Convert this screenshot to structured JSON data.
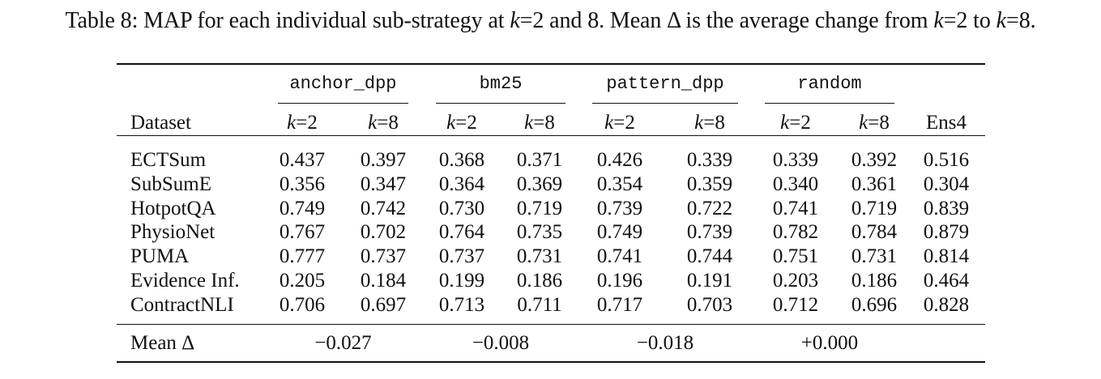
{
  "caption": {
    "prefix": "Table 8: MAP for each individual sub-strategy at ",
    "k1": "k",
    "mid1": "=2 and 8. Mean Δ is the average change from ",
    "k2": "k",
    "mid2": "=2 to ",
    "k3": "k",
    "suffix": "=8."
  },
  "header": {
    "dataset_label": "Dataset",
    "groups": [
      "anchor_dpp",
      "bm25",
      "pattern_dpp",
      "random"
    ],
    "k_var": "k",
    "k_low": "=2",
    "k_high": "=8",
    "ens_label": "Ens4"
  },
  "rows": [
    {
      "dataset": "ECTSum",
      "values": [
        "0.437",
        "0.397",
        "0.368",
        "0.371",
        "0.426",
        "0.339",
        "0.339",
        "0.392"
      ],
      "ens4": "0.516"
    },
    {
      "dataset": "SubSumE",
      "values": [
        "0.356",
        "0.347",
        "0.364",
        "0.369",
        "0.354",
        "0.359",
        "0.340",
        "0.361"
      ],
      "ens4": "0.304"
    },
    {
      "dataset": "HotpotQA",
      "values": [
        "0.749",
        "0.742",
        "0.730",
        "0.719",
        "0.739",
        "0.722",
        "0.741",
        "0.719"
      ],
      "ens4": "0.839"
    },
    {
      "dataset": "PhysioNet",
      "values": [
        "0.767",
        "0.702",
        "0.764",
        "0.735",
        "0.749",
        "0.739",
        "0.782",
        "0.784"
      ],
      "ens4": "0.879"
    },
    {
      "dataset": "PUMA",
      "values": [
        "0.777",
        "0.737",
        "0.737",
        "0.731",
        "0.741",
        "0.744",
        "0.751",
        "0.731"
      ],
      "ens4": "0.814"
    },
    {
      "dataset": "Evidence Inf.",
      "values": [
        "0.205",
        "0.184",
        "0.199",
        "0.186",
        "0.196",
        "0.191",
        "0.203",
        "0.186"
      ],
      "ens4": "0.464"
    },
    {
      "dataset": "ContractNLI",
      "values": [
        "0.706",
        "0.697",
        "0.713",
        "0.711",
        "0.717",
        "0.703",
        "0.712",
        "0.696"
      ],
      "ens4": "0.828"
    }
  ],
  "mean_row": {
    "label": "Mean Δ",
    "values": [
      "−0.027",
      "−0.008",
      "−0.018",
      "+0.000"
    ]
  }
}
